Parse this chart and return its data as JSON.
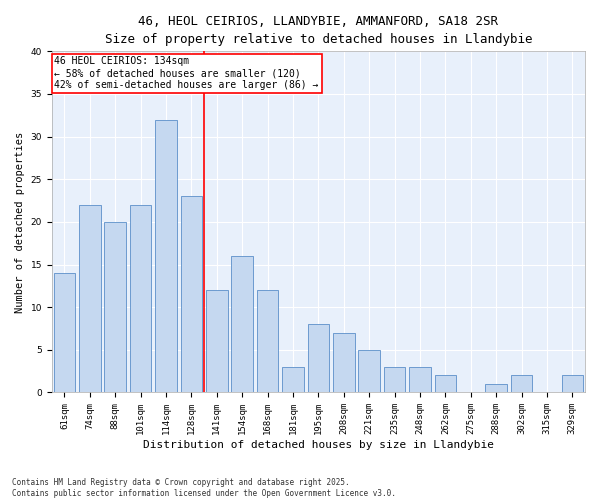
{
  "title_line1": "46, HEOL CEIRIOS, LLANDYBIE, AMMANFORD, SA18 2SR",
  "title_line2": "Size of property relative to detached houses in Llandybie",
  "xlabel": "Distribution of detached houses by size in Llandybie",
  "ylabel": "Number of detached properties",
  "footnote": "Contains HM Land Registry data © Crown copyright and database right 2025.\nContains public sector information licensed under the Open Government Licence v3.0.",
  "bar_labels": [
    "61sqm",
    "74sqm",
    "88sqm",
    "101sqm",
    "114sqm",
    "128sqm",
    "141sqm",
    "154sqm",
    "168sqm",
    "181sqm",
    "195sqm",
    "208sqm",
    "221sqm",
    "235sqm",
    "248sqm",
    "262sqm",
    "275sqm",
    "288sqm",
    "302sqm",
    "315sqm",
    "329sqm"
  ],
  "bar_values": [
    14,
    22,
    20,
    22,
    32,
    23,
    12,
    16,
    12,
    3,
    8,
    7,
    5,
    3,
    3,
    2,
    0,
    1,
    2,
    0,
    2
  ],
  "bar_color": "#c5d8f0",
  "bar_edgecolor": "#5b8fc9",
  "red_line_x": 5.5,
  "annotation_title": "46 HEOL CEIRIOS: 134sqm",
  "annotation_line1": "← 58% of detached houses are smaller (120)",
  "annotation_line2": "42% of semi-detached houses are larger (86) →",
  "annotation_box_color": "white",
  "annotation_box_edgecolor": "red",
  "ylim": [
    0,
    40
  ],
  "background_color": "#e8f0fb",
  "grid_color": "white",
  "title1_fontsize": 9,
  "title2_fontsize": 8,
  "ylabel_fontsize": 7.5,
  "xlabel_fontsize": 8,
  "tick_fontsize": 6.5,
  "annot_fontsize": 7,
  "footnote_fontsize": 5.5
}
